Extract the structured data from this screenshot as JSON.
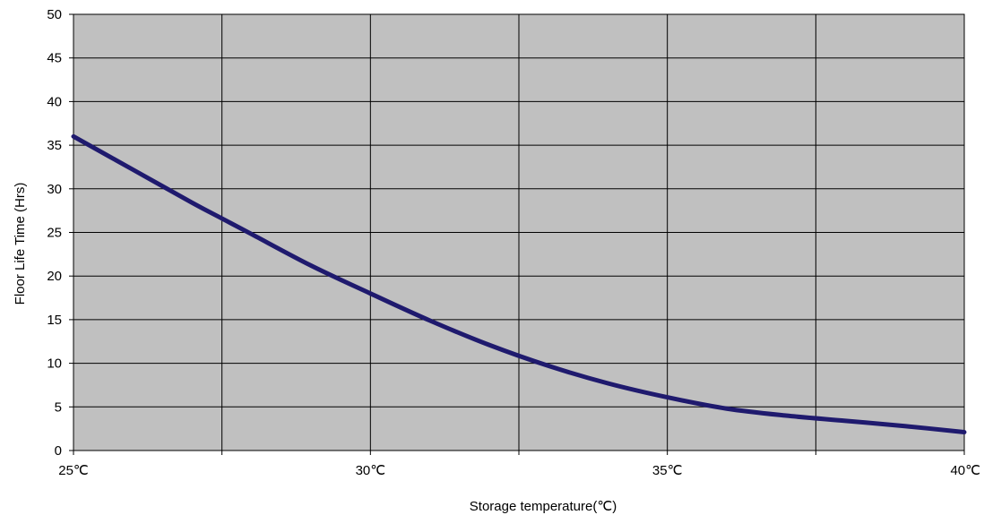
{
  "chart_data": {
    "type": "line",
    "xlabel": "Storage temperature(℃)",
    "ylabel": "Floor Life Time (Hrs)",
    "xlim": [
      25,
      40
    ],
    "ylim": [
      0,
      50
    ],
    "y_ticks": [
      0,
      5,
      10,
      15,
      20,
      25,
      30,
      35,
      40,
      45,
      50
    ],
    "x_ticks": [
      25,
      30,
      35,
      40
    ],
    "x_tick_labels": [
      "25℃",
      "30℃",
      "35℃",
      "40℃"
    ],
    "x_gridlines": [
      25,
      27.5,
      30,
      32.5,
      35,
      37.5,
      40
    ],
    "grid": true,
    "legend": "none",
    "colors": {
      "plot_background": "#c0c0c0",
      "gridline": "#000000",
      "line": "#1f1a6e"
    },
    "series": [
      {
        "x": [
          25,
          26,
          27,
          27.5,
          28,
          29,
          30,
          31,
          32,
          33,
          34,
          35,
          36,
          37,
          38,
          39,
          40
        ],
        "y": [
          36,
          32.2,
          28.4,
          26.6,
          24.8,
          21.2,
          18,
          14.9,
          12.1,
          9.7,
          7.7,
          6.1,
          4.8,
          4.0,
          3.4,
          2.8,
          2.1
        ]
      }
    ]
  }
}
